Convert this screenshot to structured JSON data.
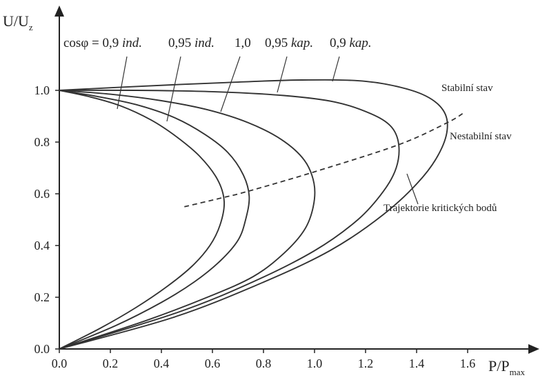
{
  "chart_data": {
    "type": "line",
    "title": "",
    "xlabel_main": "P/P",
    "xlabel_sub": "max",
    "ylabel_main": "U/U",
    "ylabel_sub": "z",
    "xlim": [
      0,
      1.8
    ],
    "ylim": [
      0,
      1.06
    ],
    "x_ticks": [
      "0.0",
      "0.2",
      "0.4",
      "0.6",
      "0.8",
      "1.0",
      "1.2",
      "1.4",
      "1.6"
    ],
    "y_ticks": [
      "0.0",
      "0.2",
      "0.4",
      "0.6",
      "0.8",
      "1.0"
    ],
    "grid": false,
    "legend": "none",
    "series": [
      {
        "label_prefix": "cosφ = ",
        "value": "0,9",
        "mode": "ind.",
        "points": [
          [
            0.0,
            1.0
          ],
          [
            0.12,
            0.975
          ],
          [
            0.24,
            0.94
          ],
          [
            0.36,
            0.885
          ],
          [
            0.46,
            0.82
          ],
          [
            0.55,
            0.745
          ],
          [
            0.62,
            0.655
          ],
          [
            0.646,
            0.57
          ],
          [
            0.63,
            0.48
          ],
          [
            0.59,
            0.4
          ],
          [
            0.52,
            0.32
          ],
          [
            0.42,
            0.24
          ],
          [
            0.3,
            0.16
          ],
          [
            0.16,
            0.08
          ],
          [
            0.0,
            0.0
          ]
        ]
      },
      {
        "label_prefix": "",
        "value": "0,95",
        "mode": "ind.",
        "points": [
          [
            0.0,
            1.0
          ],
          [
            0.14,
            0.978
          ],
          [
            0.3,
            0.945
          ],
          [
            0.45,
            0.895
          ],
          [
            0.57,
            0.83
          ],
          [
            0.66,
            0.76
          ],
          [
            0.72,
            0.675
          ],
          [
            0.744,
            0.59
          ],
          [
            0.73,
            0.5
          ],
          [
            0.7,
            0.42
          ],
          [
            0.63,
            0.34
          ],
          [
            0.53,
            0.26
          ],
          [
            0.4,
            0.18
          ],
          [
            0.22,
            0.09
          ],
          [
            0.0,
            0.0
          ]
        ]
      },
      {
        "label_prefix": "",
        "value": "1,0",
        "mode": "",
        "points": [
          [
            0.0,
            1.0
          ],
          [
            0.2,
            0.985
          ],
          [
            0.4,
            0.96
          ],
          [
            0.58,
            0.925
          ],
          [
            0.74,
            0.875
          ],
          [
            0.87,
            0.81
          ],
          [
            0.96,
            0.73
          ],
          [
            0.998,
            0.64
          ],
          [
            0.995,
            0.55
          ],
          [
            0.96,
            0.46
          ],
          [
            0.88,
            0.37
          ],
          [
            0.76,
            0.28
          ],
          [
            0.58,
            0.2
          ],
          [
            0.34,
            0.11
          ],
          [
            0.0,
            0.0
          ]
        ]
      },
      {
        "label_prefix": "",
        "value": "0,95",
        "mode": "kap.",
        "points": [
          [
            0.0,
            1.0
          ],
          [
            0.3,
            1.0
          ],
          [
            0.6,
            0.995
          ],
          [
            0.88,
            0.98
          ],
          [
            1.08,
            0.955
          ],
          [
            1.22,
            0.91
          ],
          [
            1.3,
            0.86
          ],
          [
            1.33,
            0.79
          ],
          [
            1.32,
            0.7
          ],
          [
            1.27,
            0.61
          ],
          [
            1.17,
            0.5
          ],
          [
            1.0,
            0.38
          ],
          [
            0.76,
            0.26
          ],
          [
            0.46,
            0.14
          ],
          [
            0.0,
            0.0
          ]
        ]
      },
      {
        "label_prefix": "",
        "value": "0,9",
        "mode": "kap.",
        "points": [
          [
            0.0,
            1.0
          ],
          [
            0.3,
            1.015
          ],
          [
            0.65,
            1.03
          ],
          [
            0.95,
            1.04
          ],
          [
            1.2,
            1.035
          ],
          [
            1.38,
            1.0
          ],
          [
            1.48,
            0.95
          ],
          [
            1.52,
            0.88
          ],
          [
            1.5,
            0.78
          ],
          [
            1.42,
            0.66
          ],
          [
            1.27,
            0.52
          ],
          [
            1.06,
            0.38
          ],
          [
            0.78,
            0.25
          ],
          [
            0.44,
            0.12
          ],
          [
            0.0,
            0.0
          ]
        ]
      }
    ],
    "critical_trajectory": {
      "points": [
        [
          0.49,
          0.55
        ],
        [
          0.64,
          0.585
        ],
        [
          0.74,
          0.61
        ],
        [
          1.0,
          0.685
        ],
        [
          1.33,
          0.79
        ],
        [
          1.52,
          0.875
        ],
        [
          1.58,
          0.91
        ]
      ]
    },
    "annotations": {
      "stable": "Stabilní stav",
      "unstable": "Nestabilní stav",
      "trajectory": "Trajektorie kritických bodů"
    }
  }
}
